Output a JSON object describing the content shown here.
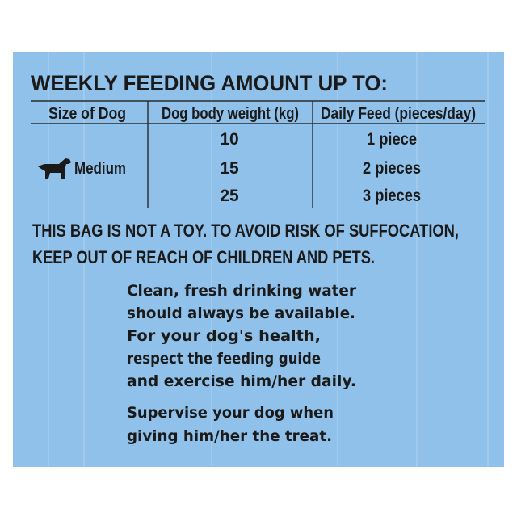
{
  "heading": "WEEKLY FEEDING AMOUNT UP TO:",
  "table": {
    "headers": [
      "Size of Dog",
      "Dog body weight (kg)",
      "Daily Feed (pieces/day)"
    ],
    "size": "Medium",
    "rows": [
      [
        "10",
        "1 piece"
      ],
      [
        "15",
        "2 pieces"
      ],
      [
        "25",
        "3 pieces"
      ]
    ]
  },
  "warning": [
    "THIS BAG IS NOT A TOY. TO AVOID RISK OF SUFFOCATION,",
    "KEEP OUT OF REACH OF CHILDREN AND PETS."
  ],
  "advice": [
    "Clean, fresh drinking water",
    "should always be available.",
    "For your dog's health,",
    "respect the feeding guide",
    "and exercise him/her daily."
  ],
  "supervise": [
    "Supervise your dog when",
    "giving him/her the treat."
  ]
}
